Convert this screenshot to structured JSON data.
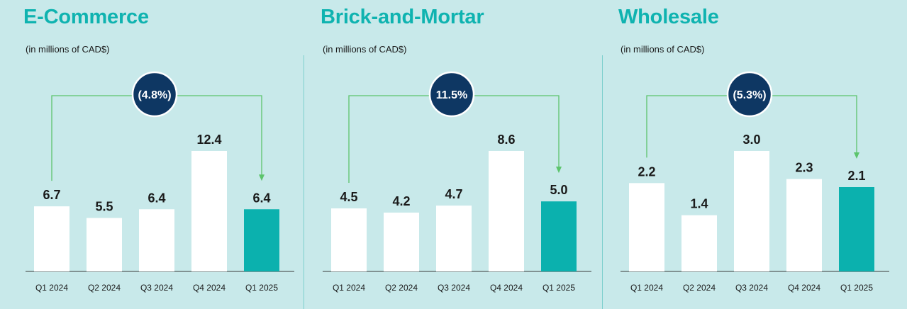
{
  "colors": {
    "background": "#c8e9ea",
    "accent": "#0fb3b0",
    "bar": "#ffffff",
    "highlight_bar": "#0bb1ae",
    "badge": "#0e3763",
    "connector": "#5cc46c"
  },
  "chart_data": [
    {
      "type": "bar",
      "title": "E-Commerce",
      "subtitle": "(in millions of CAD$)",
      "categories": [
        "Q1 2024",
        "Q2 2024",
        "Q3 2024",
        "Q4 2024",
        "Q1 2025"
      ],
      "values": [
        6.7,
        5.5,
        6.4,
        12.4,
        6.4
      ],
      "value_labels": [
        "6.7",
        "5.5",
        "6.4",
        "12.4",
        "6.4"
      ],
      "highlight_index": 4,
      "change_badge": "(4.8%)",
      "grid": false,
      "legend": "none"
    },
    {
      "type": "bar",
      "title": "Brick-and-Mortar",
      "subtitle": "(in millions of CAD$)",
      "categories": [
        "Q1 2024",
        "Q2 2024",
        "Q3 2024",
        "Q4 2024",
        "Q1 2025"
      ],
      "values": [
        4.5,
        4.2,
        4.7,
        8.6,
        5.0
      ],
      "value_labels": [
        "4.5",
        "4.2",
        "4.7",
        "8.6",
        "5.0"
      ],
      "highlight_index": 4,
      "change_badge": "11.5%",
      "grid": false,
      "legend": "none"
    },
    {
      "type": "bar",
      "title": "Wholesale",
      "subtitle": "(in millions of CAD$)",
      "categories": [
        "Q1 2024",
        "Q2 2024",
        "Q3 2024",
        "Q4 2024",
        "Q1 2025"
      ],
      "values": [
        2.2,
        1.4,
        3.0,
        2.3,
        2.1
      ],
      "value_labels": [
        "2.2",
        "1.4",
        "3.0",
        "2.3",
        "2.1"
      ],
      "highlight_index": 4,
      "change_badge": "(5.3%)",
      "grid": false,
      "legend": "none"
    }
  ]
}
